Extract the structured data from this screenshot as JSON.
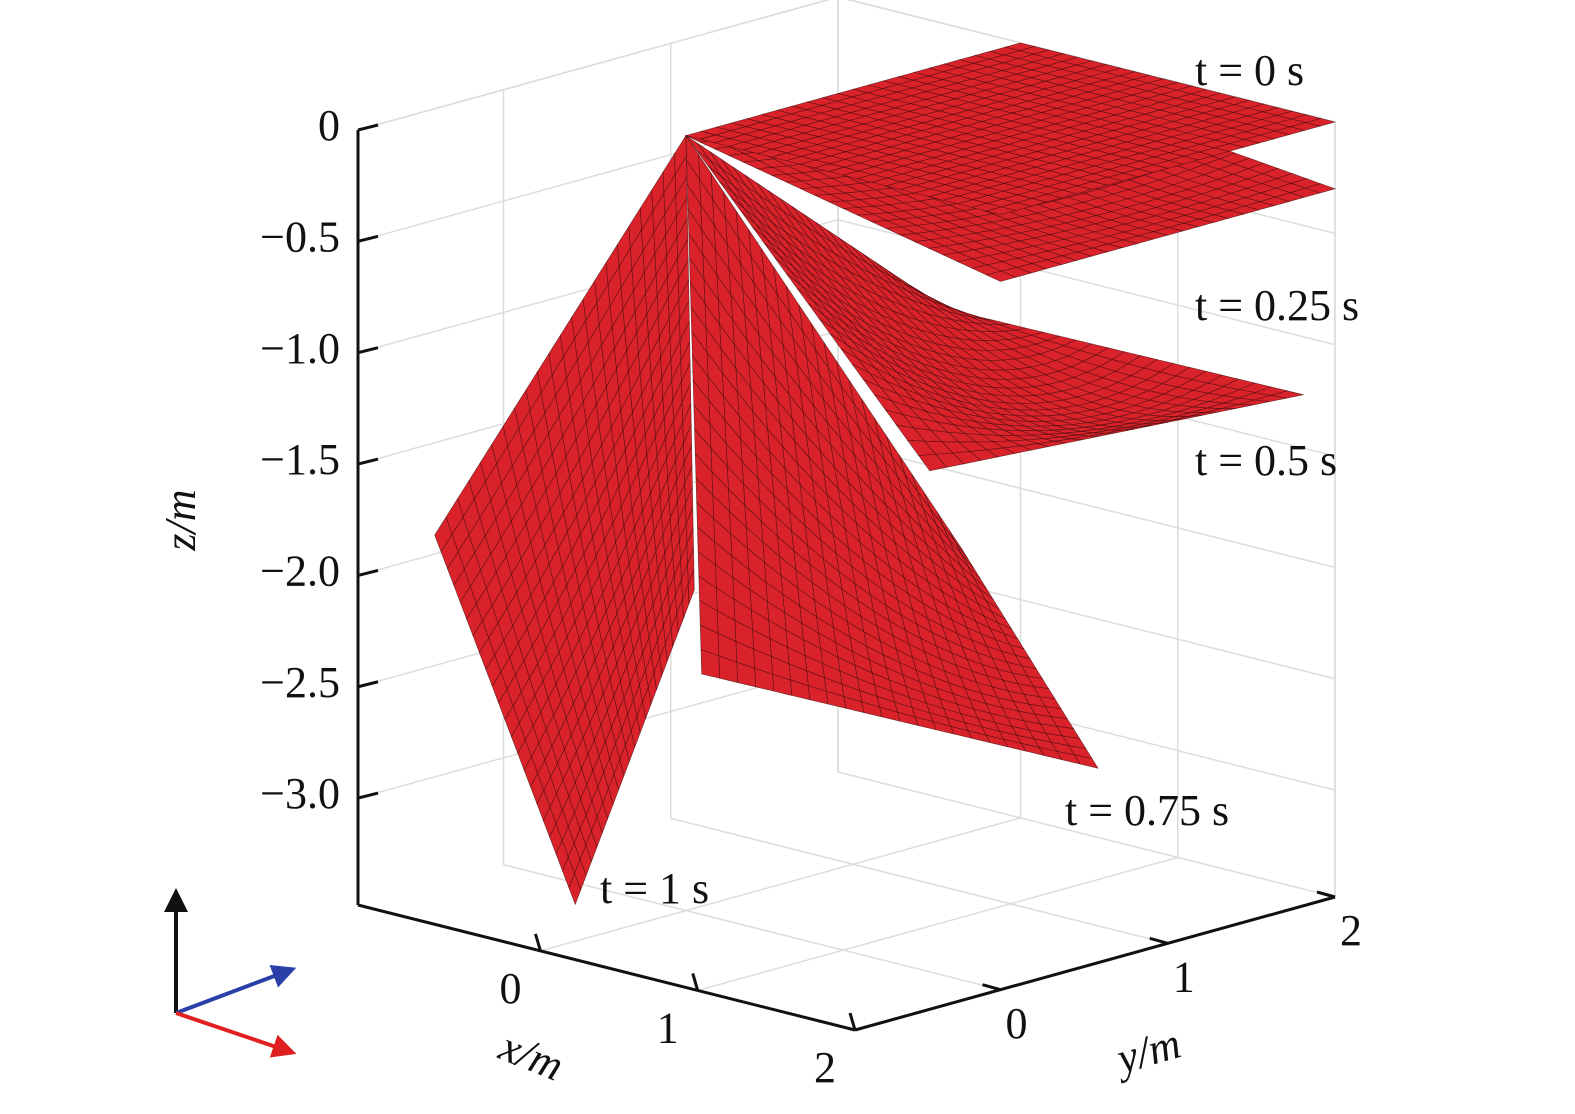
{
  "chart_data": {
    "type": "surface3d",
    "xlabel": "x/m",
    "ylabel": "y/m",
    "zlabel": "z/m",
    "xlim": [
      -1.16,
      2
    ],
    "ylim": [
      -0.87,
      2
    ],
    "zlim": [
      -3.48,
      0
    ],
    "xticks": [
      0,
      1,
      2
    ],
    "yticks": [
      0,
      1,
      2
    ],
    "zticks": [
      {
        "value": -3.0,
        "label": "−3.0"
      },
      {
        "value": -2.5,
        "label": "−2.5"
      },
      {
        "value": -2.0,
        "label": "−2.0"
      },
      {
        "value": -1.5,
        "label": "−1.5"
      },
      {
        "value": -1.0,
        "label": "−1.0"
      },
      {
        "value": -0.5,
        "label": "−0.5"
      },
      0
    ],
    "grid": true,
    "color": "#d9222a",
    "series": [
      {
        "name": "t = 0.5 s",
        "corners": [
          [
            0,
            0,
            0
          ],
          [
            1.55,
            0,
            -1.23
          ],
          [
            1.8,
            2,
            -1.26
          ],
          [
            0,
            1.55,
            -1.1
          ]
        ],
        "center": [
          0.9,
          0.9,
          -1.15
        ]
      },
      {
        "name": "t = 0.25 s",
        "corners": [
          [
            0,
            0,
            0
          ],
          [
            2,
            0,
            -0.3
          ],
          [
            2,
            2,
            -0.3
          ],
          [
            0,
            2,
            -0.15
          ]
        ],
        "center": [
          1,
          1,
          -0.25
        ]
      },
      {
        "name": "t = 0 s",
        "corners": [
          [
            0,
            0,
            0
          ],
          [
            2,
            0,
            0
          ],
          [
            2,
            2,
            0
          ],
          [
            0,
            2,
            0
          ]
        ],
        "center": [
          1,
          1,
          0
        ]
      },
      {
        "name": "t = 0.75 s",
        "corners": [
          [
            0,
            0,
            0
          ],
          [
            0.1,
            0,
            -2.4
          ],
          [
            0.6,
            1.9,
            -3.13
          ],
          [
            0,
            1.65,
            -2.2
          ]
        ],
        "center": [
          0.3,
          0.8,
          -2.1
        ]
      },
      {
        "name": "t = 1 s",
        "corners": [
          [
            0,
            0,
            0
          ],
          [
            -0.8,
            -0.75,
            -1.78
          ],
          [
            0.2,
            -0.85,
            -3.24
          ],
          [
            0,
            0.05,
            -2.05
          ]
        ],
        "center": [
          -0.2,
          -0.35,
          -1.85
        ]
      }
    ]
  }
}
